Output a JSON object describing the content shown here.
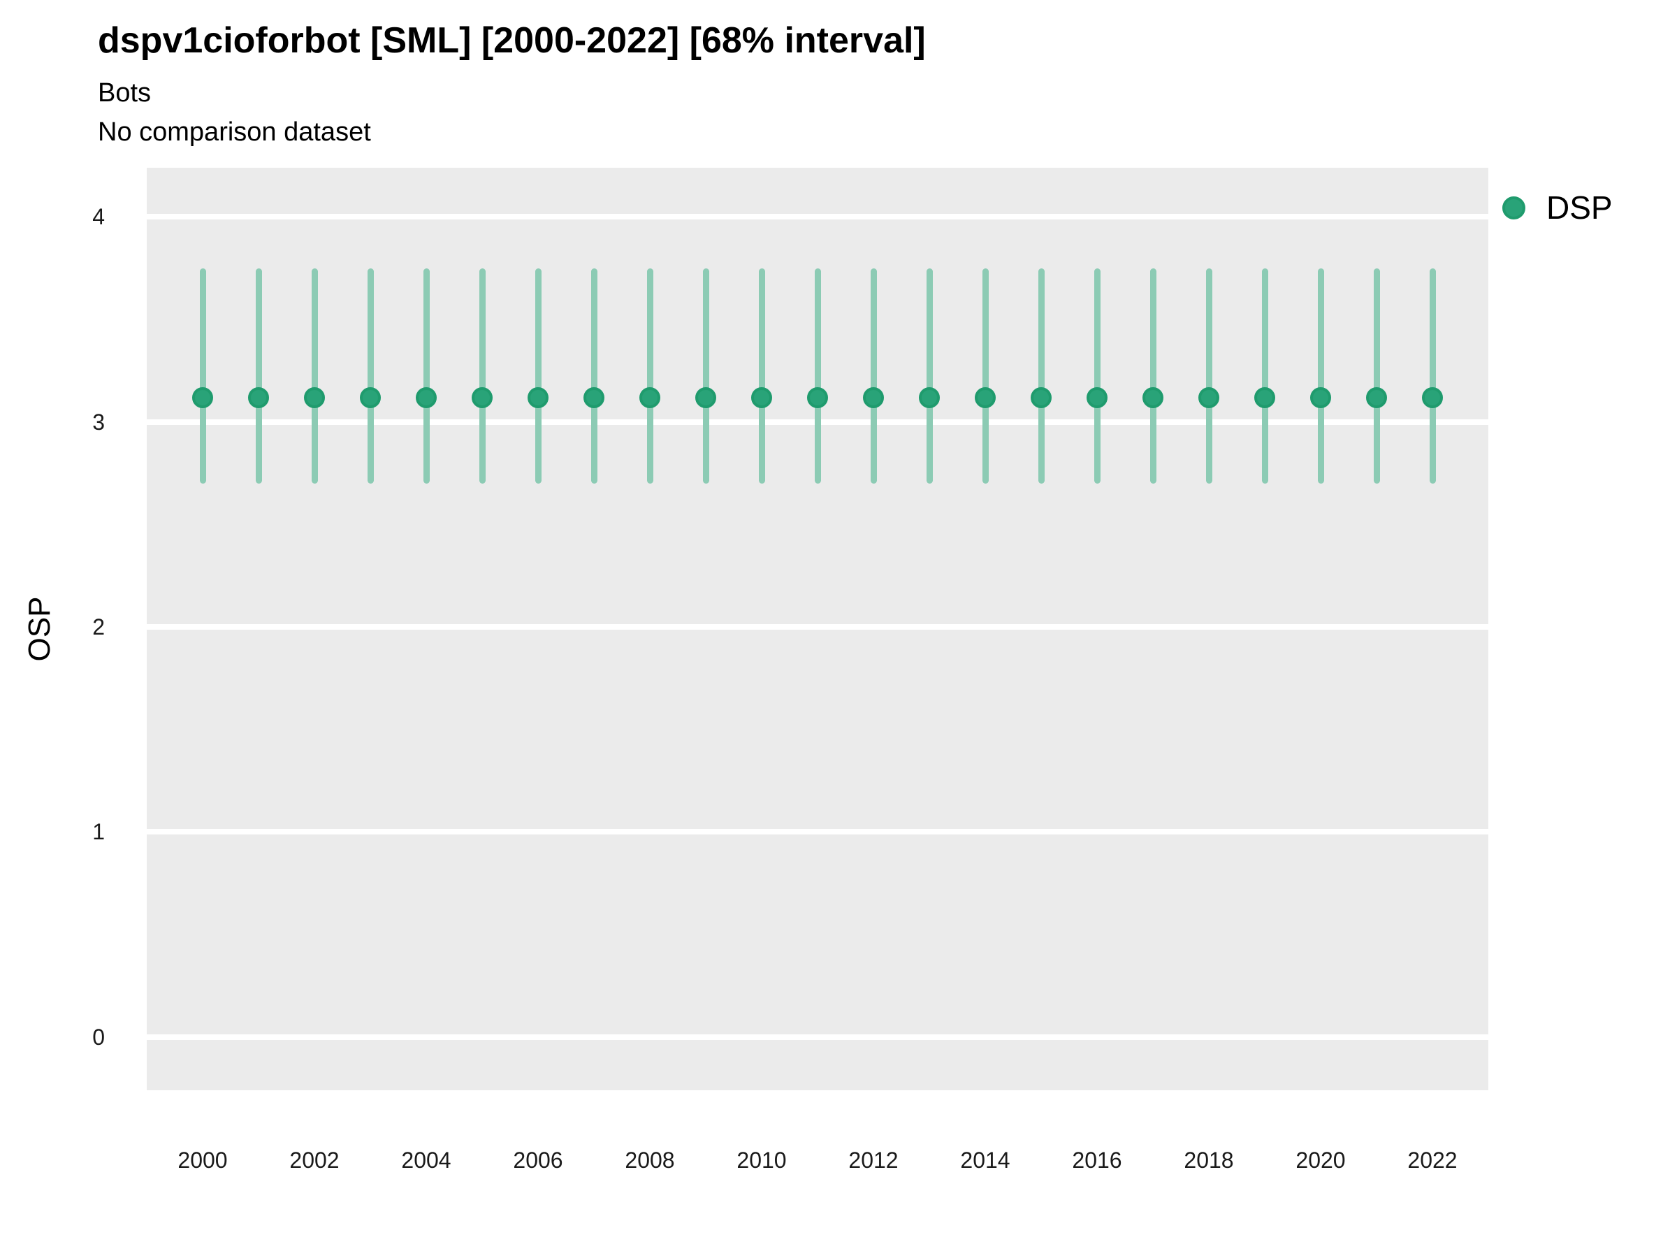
{
  "title": "dspv1cioforbot [SML] [2000-2022] [68% interval]",
  "subtitle": "Bots",
  "comparison_note": "No comparison dataset",
  "legend": {
    "position": "right",
    "items": [
      {
        "label": "DSP",
        "marker": "circle-icon",
        "color": "#29a378"
      }
    ]
  },
  "colors": {
    "marker_fill": "#29a378",
    "marker_stroke": "#1f9b6d",
    "error_bar": "#8ccbb4",
    "panel_background": "#ebebeb",
    "gridline": "#ffffff",
    "tick_text": "#1a1a1a",
    "title_text": "#000000"
  },
  "chart_data": {
    "type": "scatter",
    "title": "dspv1cioforbot [SML] [2000-2022] [68% interval]",
    "xlabel": "",
    "ylabel": "OSP",
    "interval": "68%",
    "grid": "horizontal-major-only",
    "legend_position": "right",
    "xlim": [
      1999,
      2023
    ],
    "ylim": [
      -0.26,
      4.24
    ],
    "xticks": [
      2000,
      2002,
      2004,
      2006,
      2008,
      2010,
      2012,
      2014,
      2016,
      2018,
      2020,
      2022
    ],
    "yticks": [
      0,
      1,
      2,
      3,
      4
    ],
    "series": [
      {
        "name": "DSP",
        "x": [
          2000,
          2001,
          2002,
          2003,
          2004,
          2005,
          2006,
          2007,
          2008,
          2009,
          2010,
          2011,
          2012,
          2013,
          2014,
          2015,
          2016,
          2017,
          2018,
          2019,
          2020,
          2021,
          2022
        ],
        "y": [
          3.12,
          3.12,
          3.12,
          3.12,
          3.12,
          3.12,
          3.12,
          3.12,
          3.12,
          3.12,
          3.12,
          3.12,
          3.12,
          3.12,
          3.12,
          3.12,
          3.12,
          3.12,
          3.12,
          3.12,
          3.12,
          3.12,
          3.12
        ],
        "y_lower": [
          2.7,
          2.7,
          2.7,
          2.7,
          2.7,
          2.7,
          2.7,
          2.7,
          2.7,
          2.7,
          2.7,
          2.7,
          2.7,
          2.7,
          2.7,
          2.7,
          2.7,
          2.7,
          2.7,
          2.7,
          2.7,
          2.7,
          2.7
        ],
        "y_upper": [
          3.75,
          3.75,
          3.75,
          3.75,
          3.75,
          3.75,
          3.75,
          3.75,
          3.75,
          3.75,
          3.75,
          3.75,
          3.75,
          3.75,
          3.75,
          3.75,
          3.75,
          3.75,
          3.75,
          3.75,
          3.75,
          3.75,
          3.75
        ]
      }
    ]
  }
}
